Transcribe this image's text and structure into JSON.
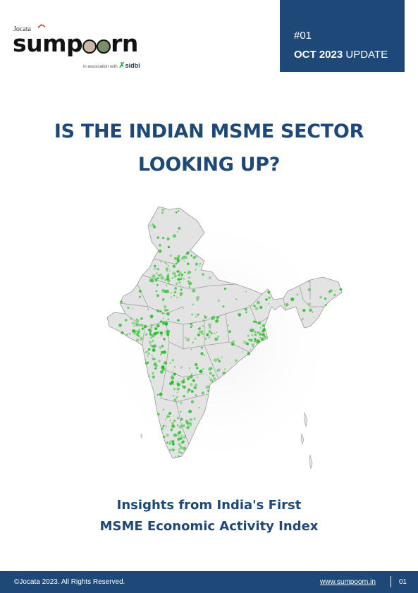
{
  "header": {
    "jocata": "Jocata",
    "brand_left": "sump",
    "brand_right": "rn",
    "assoc_text": "in association with",
    "partner": "sidbi"
  },
  "badge": {
    "issue": "#01",
    "date_bold": "OCT 2023",
    "date_rest": " UPDATE"
  },
  "title": {
    "line1": "IS THE INDIAN MSME SECTOR",
    "line2": "LOOKING UP?"
  },
  "subtitle": {
    "line1": "Insights from India's First",
    "line2": "MSME Economic Activity Index"
  },
  "footer": {
    "copyright": "©Jocata 2023. All Rights Reserved.",
    "website": "www.sumpoorn.in",
    "page": "01"
  },
  "colors": {
    "brand_blue": "#1d4877",
    "map_fill": "#e3e3e3",
    "activity_green": "#22c022"
  }
}
